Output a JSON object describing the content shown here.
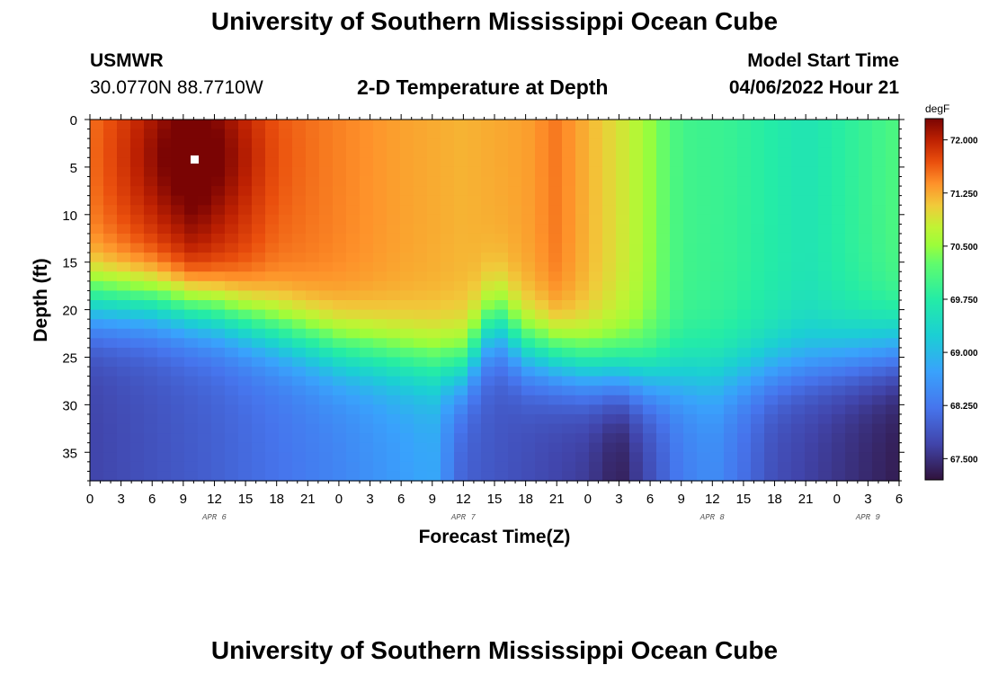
{
  "header": {
    "title": "University of Southern Mississippi Ocean Cube",
    "station": "USMWR",
    "coords": "30.0770N  88.7710W",
    "subtitle": "2-D Temperature at Depth",
    "model_label": "Model Start Time",
    "model_time": "04/06/2022 Hour 21"
  },
  "footer": {
    "title": "University of Southern Mississippi Ocean Cube"
  },
  "chart_data": {
    "type": "heatmap",
    "title": "2-D Temperature at Depth",
    "xlabel": "Forecast Time(Z)",
    "ylabel": "Depth (ft)",
    "x_range_hours": [
      0,
      78
    ],
    "x_ticks": [
      "0",
      "3",
      "6",
      "9",
      "12",
      "15",
      "18",
      "21",
      "0",
      "3",
      "6",
      "9",
      "12",
      "15",
      "18",
      "21",
      "0",
      "3",
      "6",
      "9",
      "12",
      "15",
      "18",
      "21",
      "0",
      "3",
      "6"
    ],
    "date_labels": [
      {
        "label": "APR 6",
        "hour": 12
      },
      {
        "label": "APR 7",
        "hour": 36
      },
      {
        "label": "APR 8",
        "hour": 60
      },
      {
        "label": "APR 9",
        "hour": 75
      }
    ],
    "y_range_ft": [
      0,
      38
    ],
    "y_ticks": [
      0,
      5,
      10,
      15,
      20,
      25,
      30,
      35
    ],
    "colorbar": {
      "unit": "degF",
      "range": [
        67.2,
        72.3
      ],
      "ticks": [
        "72.000",
        "71.250",
        "70.500",
        "69.750",
        "69.000",
        "68.250",
        "67.500"
      ]
    },
    "marker": {
      "hour": 10,
      "depth_ft": 4
    },
    "thermocline_depth_ft": [
      [
        0,
        19
      ],
      [
        6,
        19
      ],
      [
        12,
        20
      ],
      [
        18,
        22
      ],
      [
        24,
        24
      ],
      [
        30,
        25
      ],
      [
        36,
        26
      ],
      [
        39,
        21
      ],
      [
        42,
        24
      ],
      [
        48,
        26
      ],
      [
        54,
        27
      ],
      [
        60,
        27
      ],
      [
        66,
        26
      ],
      [
        72,
        25
      ],
      [
        78,
        24
      ]
    ],
    "surface_temp_degF": [
      [
        0,
        71.5
      ],
      [
        10,
        72.2
      ],
      [
        18,
        71.6
      ],
      [
        30,
        71.3
      ],
      [
        36,
        71.2
      ],
      [
        42,
        71.3
      ],
      [
        45,
        71.5
      ],
      [
        52,
        70.8
      ],
      [
        57,
        70.0
      ],
      [
        62,
        69.9
      ],
      [
        69,
        69.6
      ],
      [
        78,
        70.1
      ]
    ],
    "bottom_temp_degF": [
      [
        0,
        67.7
      ],
      [
        12,
        68.0
      ],
      [
        24,
        68.4
      ],
      [
        33,
        68.8
      ],
      [
        36,
        68.0
      ],
      [
        48,
        67.6
      ],
      [
        51,
        67.3
      ],
      [
        57,
        68.3
      ],
      [
        60,
        68.5
      ],
      [
        66,
        67.8
      ],
      [
        78,
        67.3
      ]
    ]
  }
}
